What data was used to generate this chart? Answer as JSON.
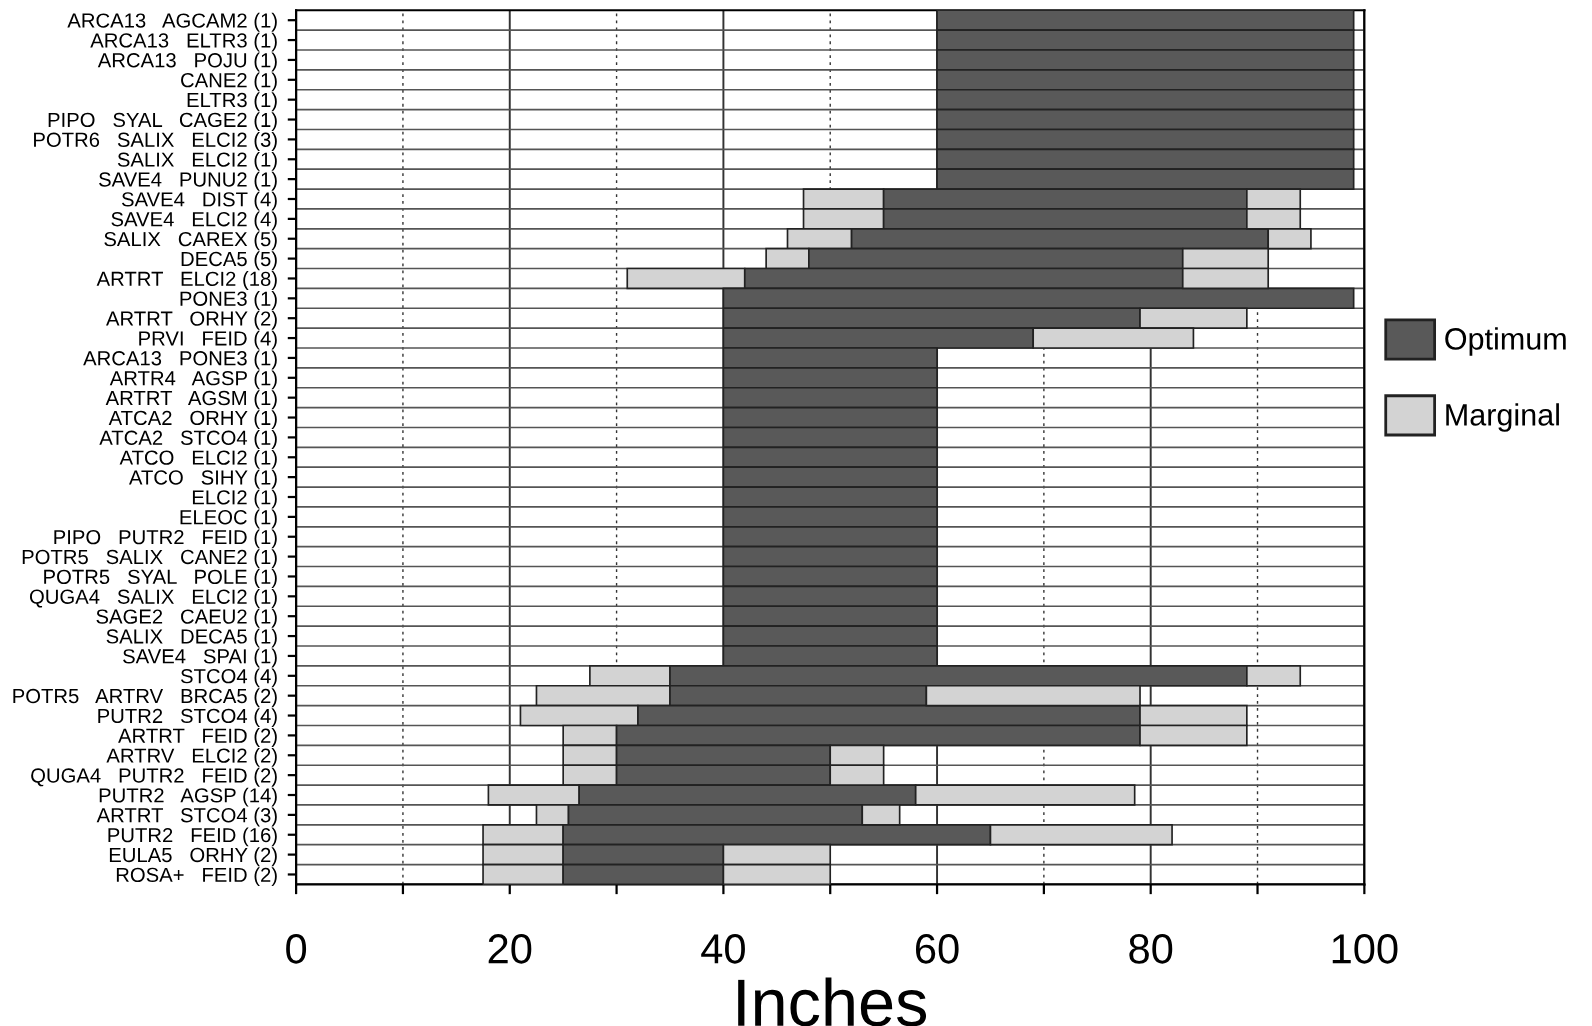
{
  "chart_data": {
    "type": "bar",
    "orientation": "horizontal",
    "xlabel": "Inches",
    "categories": [
      "ARCA13   AGCAM2 (1)",
      "ARCA13   ELTR3 (1)",
      "ARCA13   POJU (1)",
      "CANE2 (1)",
      "ELTR3 (1)",
      "PIPO   SYAL   CAGE2 (1)",
      "POTR6   SALIX   ELCI2 (3)",
      "SALIX   ELCI2 (1)",
      "SAVE4   PUNU2 (1)",
      "SAVE4   DIST (4)",
      "SAVE4   ELCI2 (4)",
      "SALIX   CAREX (5)",
      "DECA5 (5)",
      "ARTRT   ELCI2 (18)",
      "PONE3 (1)",
      "ARTRT   ORHY (2)",
      "PRVI   FEID (4)",
      "ARCA13   PONE3 (1)",
      "ARTR4   AGSP (1)",
      "ARTRT   AGSM (1)",
      "ATCA2   ORHY (1)",
      "ATCA2   STCO4 (1)",
      "ATCO   ELCI2 (1)",
      "ATCO   SIHY (1)",
      "ELCI2 (1)",
      "ELEOC (1)",
      "PIPO   PUTR2   FEID (1)",
      "POTR5   SALIX   CANE2 (1)",
      "POTR5   SYAL   POLE (1)",
      "QUGA4   SALIX   ELCI2 (1)",
      "SAGE2   CAEU2 (1)",
      "SALIX   DECA5 (1)",
      "SAVE4   SPAI (1)",
      "STCO4 (4)",
      "POTR5   ARTRV   BRCA5 (2)",
      "PUTR2   STCO4 (4)",
      "ARTRT   FEID (2)",
      "ARTRV   ELCI2 (2)",
      "QUGA4   PUTR2   FEID (2)",
      "PUTR2   AGSP (14)",
      "ARTRT   STCO4 (3)",
      "PUTR2   FEID (16)",
      "EULA5   ORHY (2)",
      "ROSA+   FEID (2)"
    ],
    "series": [
      {
        "name": "Marginal",
        "color": "#d3d3d3",
        "base": [
          null,
          null,
          null,
          null,
          null,
          null,
          null,
          null,
          null,
          47.5,
          47.5,
          46,
          44,
          31,
          null,
          null,
          null,
          null,
          null,
          null,
          null,
          null,
          null,
          null,
          null,
          null,
          null,
          null,
          null,
          null,
          null,
          null,
          null,
          27.5,
          22.5,
          21,
          25,
          25,
          25,
          18,
          22.5,
          17.5,
          17.5,
          17.5
        ],
        "values": [
          null,
          null,
          null,
          null,
          null,
          null,
          null,
          null,
          null,
          7.5,
          7.5,
          6,
          4,
          11,
          null,
          null,
          null,
          null,
          null,
          null,
          null,
          null,
          null,
          null,
          null,
          null,
          null,
          null,
          null,
          null,
          null,
          null,
          null,
          7.5,
          12.5,
          11,
          5,
          5,
          5,
          8.5,
          3,
          7.5,
          7.5,
          7.5
        ]
      },
      {
        "name": "Optimum",
        "color": "#595959",
        "base": [
          60,
          60,
          60,
          60,
          60,
          60,
          60,
          60,
          60,
          55,
          55,
          52,
          48,
          42,
          40,
          40,
          40,
          40,
          40,
          40,
          40,
          40,
          40,
          40,
          40,
          40,
          40,
          40,
          40,
          40,
          40,
          40,
          40,
          35,
          35,
          32,
          30,
          30,
          30,
          26.5,
          25.5,
          25,
          25,
          25
        ],
        "values": [
          39,
          39,
          39,
          39,
          39,
          39,
          39,
          39,
          39,
          34,
          34,
          39,
          35,
          41,
          59,
          39,
          29,
          20,
          20,
          20,
          20,
          20,
          20,
          20,
          20,
          20,
          20,
          20,
          20,
          20,
          20,
          20,
          20,
          54,
          24,
          47,
          49,
          20,
          20,
          31.5,
          27.5,
          40,
          15,
          15
        ]
      },
      {
        "color": "#d3d3d3",
        "base": [
          null,
          null,
          null,
          null,
          null,
          null,
          null,
          null,
          null,
          89,
          89,
          91,
          83,
          83,
          null,
          79,
          69,
          null,
          null,
          null,
          null,
          null,
          null,
          null,
          null,
          null,
          null,
          null,
          null,
          null,
          null,
          null,
          null,
          89,
          59,
          79,
          79,
          50,
          50,
          58,
          53,
          65,
          40,
          40
        ],
        "values": [
          null,
          null,
          null,
          null,
          null,
          null,
          null,
          null,
          null,
          5,
          5,
          4,
          8,
          8,
          null,
          10,
          15,
          null,
          null,
          null,
          null,
          null,
          null,
          null,
          null,
          null,
          null,
          null,
          null,
          null,
          null,
          null,
          null,
          5,
          20,
          10,
          10,
          5,
          5,
          20.5,
          3.5,
          17,
          10,
          10
        ]
      }
    ],
    "xlim": [
      0,
      100
    ],
    "xticks": [
      0,
      {
        "value": 10,
        "label": null
      },
      20,
      {
        "value": 30,
        "label": null
      },
      40,
      {
        "value": 50,
        "label": null
      },
      60,
      {
        "value": 70,
        "label": null
      },
      80,
      {
        "value": 90,
        "label": null
      },
      100
    ],
    "grid": true,
    "legend": "right"
  }
}
